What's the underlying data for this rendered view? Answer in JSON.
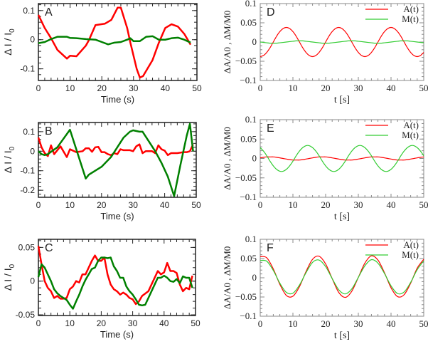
{
  "chart_data": [
    {
      "id": "A",
      "type": "line",
      "panel_label": "A",
      "xlabel": "Time (s)",
      "ylabel": "Δ I / I0",
      "ylabel_main": "Δ I / I",
      "ylabel_sub": "0",
      "xlim": [
        0,
        50
      ],
      "ylim": [
        -0.14,
        0.124
      ],
      "xticks": [
        "0",
        "10",
        "20",
        "30",
        "40",
        "50"
      ],
      "xtick_values": [
        0,
        10,
        20,
        30,
        40,
        50
      ],
      "yticks": [
        "0.1",
        "0",
        "-0.1"
      ],
      "ytick_values": [
        0.1,
        0,
        -0.1
      ],
      "series": [
        {
          "name": "red",
          "color": "#ff0000",
          "x": [
            0,
            2,
            4,
            6,
            9,
            10,
            12,
            15,
            16,
            18,
            21,
            23,
            25,
            26,
            28,
            29,
            31,
            32,
            33,
            36,
            38,
            40,
            42,
            44,
            46,
            48
          ],
          "y": [
            0.085,
            0.04,
            0.005,
            -0.035,
            -0.065,
            -0.055,
            -0.057,
            -0.02,
            0.0,
            0.05,
            0.055,
            0.068,
            0.11,
            0.11,
            0.04,
            -0.01,
            -0.1,
            -0.13,
            -0.125,
            -0.07,
            -0.01,
            0.04,
            0.053,
            0.045,
            0.02,
            -0.017
          ]
        },
        {
          "name": "green",
          "color": "#008000",
          "x": [
            0,
            2,
            4,
            6,
            8,
            9,
            10,
            12,
            15,
            18,
            20,
            22,
            24,
            26,
            28,
            29,
            30,
            32,
            34,
            36,
            38,
            40,
            42,
            44,
            46,
            48
          ],
          "y": [
            -0.012,
            -0.008,
            0.002,
            0.01,
            0.01,
            0.01,
            0.006,
            0.005,
            0.002,
            0.0,
            -0.008,
            -0.016,
            -0.01,
            -0.008,
            0.0,
            0.005,
            -0.005,
            -0.005,
            0.01,
            0.012,
            0.0,
            0.0,
            0.005,
            0.007,
            0.0,
            -0.01
          ]
        }
      ]
    },
    {
      "id": "B",
      "type": "line",
      "panel_label": "B",
      "xlabel": "Time (s)",
      "ylabel": "Δ I / I0",
      "ylabel_main": "Δ I / I",
      "ylabel_sub": "0",
      "xlim": [
        0,
        50
      ],
      "ylim": [
        -0.236,
        0.147
      ],
      "xticks": [
        "0",
        "10",
        "20",
        "30",
        "40",
        "50"
      ],
      "xtick_values": [
        0,
        10,
        20,
        30,
        40,
        50
      ],
      "yticks": [
        "0.1",
        "0",
        "-0.1",
        "-0.2"
      ],
      "ytick_values": [
        0.1,
        0,
        -0.1,
        -0.2
      ],
      "series": [
        {
          "name": "red",
          "color": "#ff0000",
          "x": [
            0,
            1,
            2,
            3,
            4,
            5,
            7,
            9,
            10,
            12,
            14,
            15,
            16,
            17,
            18,
            19,
            20,
            21,
            22,
            23,
            24,
            25,
            26,
            27,
            29,
            30,
            31,
            32,
            33,
            34,
            36,
            37,
            38,
            39,
            40,
            41,
            42,
            44,
            46,
            47,
            48,
            49
          ],
          "y": [
            0.07,
            0.02,
            -0.01,
            -0.025,
            0.03,
            -0.015,
            0.025,
            -0.03,
            0.01,
            -0.005,
            0.0,
            0.015,
            0.015,
            -0.003,
            0.02,
            0.022,
            -0.005,
            -0.005,
            -0.015,
            -0.02,
            -0.01,
            -0.015,
            0.01,
            0.005,
            0.005,
            0.0,
            0.025,
            0.035,
            -0.01,
            0.0,
            0.0,
            -0.01,
            0.03,
            0.01,
            0.003,
            -0.02,
            -0.01,
            -0.01,
            -0.005,
            -0.005,
            0.0,
            0.035
          ]
        },
        {
          "name": "green",
          "color": "#008000",
          "x": [
            0,
            1,
            2,
            3,
            6,
            10,
            15,
            16,
            18,
            20,
            23,
            25,
            27,
            29,
            30,
            32,
            33,
            35,
            37,
            39,
            41,
            43,
            45,
            47,
            48,
            49
          ],
          "y": [
            0.0,
            -0.015,
            -0.02,
            -0.015,
            0.02,
            0.11,
            -0.14,
            -0.12,
            -0.1,
            -0.08,
            -0.03,
            0.02,
            0.07,
            0.1,
            0.107,
            0.1,
            0.1,
            0.05,
            0.0,
            -0.06,
            -0.13,
            -0.23,
            -0.07,
            0.08,
            0.14,
            0.0
          ]
        }
      ]
    },
    {
      "id": "C",
      "type": "line",
      "panel_label": "C",
      "xlabel": "Time (s)",
      "ylabel": "Δ I / I0",
      "ylabel_main": "Δ I / I",
      "ylabel_sub": "0",
      "xlim": [
        0,
        50
      ],
      "ylim": [
        -0.051,
        0.062
      ],
      "xticks": [
        "0",
        "10",
        "20",
        "30",
        "40",
        "50"
      ],
      "xtick_values": [
        0,
        10,
        20,
        30,
        40,
        50
      ],
      "yticks": [
        "0.05",
        "0",
        "-0.05"
      ],
      "ytick_values": [
        0.05,
        0,
        -0.05
      ],
      "series": [
        {
          "name": "red",
          "color": "#ff0000",
          "x": [
            0,
            1,
            2,
            3,
            4,
            5,
            6,
            7,
            8,
            9,
            10,
            11,
            12,
            13,
            14,
            15,
            16,
            17,
            18,
            19,
            20,
            21,
            22,
            23,
            24,
            25,
            26,
            27,
            28,
            29,
            30,
            31,
            32,
            33,
            35,
            36,
            37,
            38,
            39,
            40,
            41,
            42,
            43,
            44,
            45,
            46,
            47,
            48,
            49
          ],
          "y": [
            0.052,
            0.025,
            0.0,
            -0.01,
            -0.015,
            -0.025,
            -0.022,
            -0.026,
            -0.026,
            -0.025,
            -0.012,
            -0.008,
            0.0,
            -0.002,
            0.01,
            0.01,
            0.02,
            0.03,
            0.038,
            0.03,
            0.03,
            0.035,
            0.01,
            -0.005,
            -0.012,
            -0.015,
            -0.02,
            -0.017,
            -0.02,
            -0.025,
            -0.027,
            -0.034,
            -0.03,
            -0.022,
            -0.015,
            -0.005,
            0.005,
            0.015,
            0.01,
            0.013,
            0.027,
            0.015,
            0.015,
            0.012,
            -0.005,
            -0.015,
            -0.01,
            -0.012,
            0.008
          ]
        },
        {
          "name": "green",
          "color": "#008000",
          "x": [
            0,
            1,
            2,
            3,
            4,
            5,
            6,
            7,
            8,
            9,
            10,
            11,
            12,
            13,
            14,
            15,
            16,
            17,
            18,
            19,
            20,
            21,
            22,
            23,
            24,
            25,
            26,
            27,
            28,
            29,
            30,
            31,
            32,
            33,
            34,
            35,
            36,
            37,
            38,
            39,
            40,
            41,
            42,
            43,
            44,
            45,
            46,
            47,
            48,
            49
          ],
          "y": [
            0.006,
            0.025,
            0.02,
            0.01,
            0.0,
            -0.012,
            -0.018,
            -0.022,
            -0.025,
            -0.028,
            -0.035,
            -0.041,
            -0.03,
            -0.02,
            -0.008,
            0.002,
            0.01,
            0.018,
            0.02,
            0.03,
            0.035,
            0.035,
            0.034,
            0.035,
            0.022,
            0.015,
            0.005,
            0.005,
            -0.008,
            -0.015,
            -0.02,
            -0.027,
            -0.035,
            -0.036,
            -0.035,
            -0.025,
            -0.015,
            -0.005,
            0.005,
            0.005,
            0.008,
            0.005,
            0.0,
            -0.001,
            0.003,
            -0.003,
            0.007,
            0.005,
            0.005,
            -0.01
          ]
        }
      ]
    },
    {
      "id": "D",
      "type": "line",
      "panel_label": "D",
      "xlabel": "t  [s]",
      "ylabel": "ΔA/A0 ,  ΔM/M0",
      "xlim": [
        0,
        50
      ],
      "ylim": [
        -0.1,
        0.1
      ],
      "xticks": [
        "0",
        "10",
        "20",
        "30",
        "40",
        "50"
      ],
      "xtick_values": [
        0,
        10,
        20,
        30,
        40,
        50
      ],
      "yticks": [
        "0.1",
        "0.05",
        "0",
        "−0.05",
        "−0.1"
      ],
      "ytick_values": [
        0.1,
        0.05,
        0,
        -0.05,
        -0.1
      ],
      "legend": [
        "A(t)",
        "M(t)"
      ],
      "legend_position": "top-right",
      "series": [
        {
          "name": "A(t)",
          "color": "#ff0000",
          "x_start": 0,
          "x_step": 1,
          "y": [
            -0.038,
            -0.035,
            -0.027,
            -0.015,
            0,
            0.015,
            0.027,
            0.035,
            0.038,
            0.035,
            0.027,
            0.015,
            0,
            -0.015,
            -0.027,
            -0.035,
            -0.038,
            -0.035,
            -0.027,
            -0.015,
            0,
            0.015,
            0.027,
            0.035,
            0.038,
            0.035,
            0.027,
            0.015,
            0,
            -0.015,
            -0.027,
            -0.035,
            -0.038,
            -0.035,
            -0.027,
            -0.015,
            0,
            0.015,
            0.027,
            0.035,
            0.038,
            0.035,
            0.027,
            0.015,
            0,
            -0.015,
            -0.027,
            -0.035,
            -0.038,
            -0.035,
            -0.027
          ]
        },
        {
          "name": "M(t)",
          "color": "#33cc33",
          "x_start": 0,
          "x_step": 1,
          "y": [
            0,
            -0.001,
            -0.002,
            -0.003,
            -0.003,
            -0.003,
            -0.002,
            -0.001,
            0,
            0.001,
            0.002,
            0.003,
            0.003,
            0.003,
            0.002,
            0.001,
            0,
            -0.001,
            -0.002,
            -0.003,
            -0.003,
            -0.003,
            -0.002,
            -0.001,
            0,
            0.001,
            0.002,
            0.003,
            0.003,
            0.003,
            0.002,
            0.001,
            0,
            -0.001,
            -0.002,
            -0.003,
            -0.003,
            -0.003,
            -0.002,
            -0.001,
            0,
            0.001,
            0.002,
            0.003,
            0.003,
            0.003,
            0.002,
            0.001,
            0,
            -0.001,
            -0.002
          ]
        }
      ]
    },
    {
      "id": "E",
      "type": "line",
      "panel_label": "E",
      "xlabel": "t  [s]",
      "ylabel": "ΔA/A0 ,  ΔM/M0",
      "xlim": [
        0,
        50
      ],
      "ylim": [
        -0.1,
        0.1
      ],
      "xticks": [
        "0",
        "10",
        "20",
        "30",
        "40",
        "50"
      ],
      "xtick_values": [
        0,
        10,
        20,
        30,
        40,
        50
      ],
      "yticks": [
        "0.1",
        "0.05",
        "0",
        "−0.05",
        "−0.1"
      ],
      "ytick_values": [
        0.1,
        0.05,
        0,
        -0.05,
        -0.1
      ],
      "legend": [
        "A(t)",
        "M(t)"
      ],
      "legend_position": "top-right",
      "series": [
        {
          "name": "A(t)",
          "color": "#ff0000",
          "x_start": 0,
          "x_step": 1,
          "y": [
            0.0015,
            0.003,
            0.004,
            0.004,
            0.004,
            0.003,
            0.0015,
            0,
            -0.0015,
            -0.003,
            -0.004,
            -0.004,
            -0.004,
            -0.003,
            -0.0015,
            0,
            0.0015,
            0.003,
            0.004,
            0.004,
            0.004,
            0.003,
            0.0015,
            0,
            -0.0015,
            -0.003,
            -0.004,
            -0.004,
            -0.004,
            -0.003,
            -0.0015,
            0,
            0.0015,
            0.003,
            0.004,
            0.004,
            0.004,
            0.003,
            0.0015,
            0,
            -0.0015,
            -0.003,
            -0.004,
            -0.004,
            -0.004,
            -0.003,
            -0.0015,
            0,
            0.0015,
            0.003,
            0.004
          ]
        },
        {
          "name": "M(t)",
          "color": "#33cc33",
          "x_start": 0,
          "x_step": 1,
          "y": [
            0.028,
            0.019,
            0.007,
            -0.007,
            -0.019,
            -0.028,
            -0.033,
            -0.033,
            -0.028,
            -0.019,
            -0.007,
            0.007,
            0.019,
            0.028,
            0.033,
            0.033,
            0.028,
            0.019,
            0.007,
            -0.007,
            -0.019,
            -0.028,
            -0.033,
            -0.033,
            -0.028,
            -0.019,
            -0.007,
            0.007,
            0.019,
            0.028,
            0.033,
            0.033,
            0.028,
            0.019,
            0.007,
            -0.007,
            -0.019,
            -0.028,
            -0.033,
            -0.033,
            -0.028,
            -0.019,
            -0.007,
            0.007,
            0.019,
            0.028,
            0.033,
            0.033,
            0.028,
            0.019,
            0.007
          ]
        }
      ]
    },
    {
      "id": "F",
      "type": "line",
      "panel_label": "F",
      "xlabel": "t  [s]",
      "ylabel": "ΔA/A0 ,  ΔM/M0",
      "xlim": [
        0,
        50
      ],
      "ylim": [
        -0.1,
        0.1
      ],
      "xticks": [
        "0",
        "10",
        "20",
        "30",
        "40",
        "50"
      ],
      "xtick_values": [
        0,
        10,
        20,
        30,
        40,
        50
      ],
      "yticks": [
        "0.1",
        "0.05",
        "0",
        "−0.05",
        "−0.1"
      ],
      "ytick_values": [
        0.1,
        0.05,
        0,
        -0.05,
        -0.1
      ],
      "legend": [
        "A(t)",
        "M(t)"
      ],
      "legend_position": "top-right",
      "series": [
        {
          "name": "A(t)",
          "color": "#ff0000",
          "x_start": 0,
          "x_step": 2,
          "y": [
            0.055,
            0.052,
            0.023,
            -0.017,
            -0.046,
            -0.048,
            -0.023,
            0.016,
            0.048,
            0.056,
            0.036,
            -0.002,
            -0.038,
            -0.051,
            -0.035,
            0.001,
            0.038,
            0.057,
            0.046,
            0.013,
            -0.026,
            -0.049,
            -0.044,
            -0.014,
            0.025,
            0.048
          ]
        },
        {
          "name": "M(t)",
          "color": "#33cc33",
          "x_start": 0,
          "x_step": 2,
          "y": [
            0.045,
            0.043,
            0.019,
            -0.014,
            -0.038,
            -0.04,
            -0.019,
            0.013,
            0.04,
            0.046,
            0.029,
            -0.002,
            -0.031,
            -0.042,
            -0.029,
            0.001,
            0.031,
            0.047,
            0.038,
            0.011,
            -0.021,
            -0.041,
            -0.037,
            -0.012,
            0.021,
            0.044
          ]
        }
      ]
    }
  ]
}
